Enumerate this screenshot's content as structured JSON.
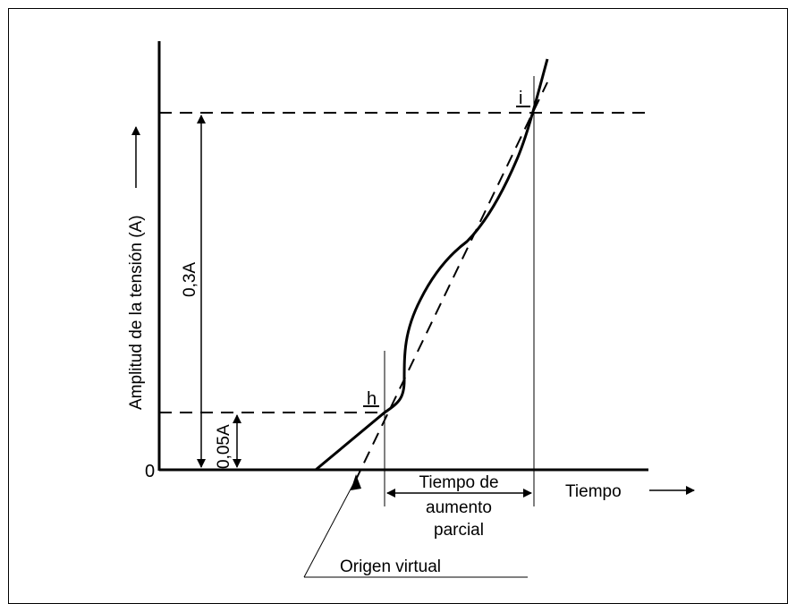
{
  "diagram": {
    "y_axis_label": "Amplitud de la tensión (A)",
    "x_axis_label": "Tiempo",
    "origin_label": "0",
    "point_h": "h",
    "point_i": "i",
    "dim_high": "0,3A",
    "dim_low": "0,05A",
    "rise_time_lines": [
      "Tiempo de",
      "aumento",
      "parcial"
    ],
    "virtual_origin_label": "Origen virtual"
  },
  "colors": {
    "ink": "#000000",
    "background": "#ffffff"
  }
}
